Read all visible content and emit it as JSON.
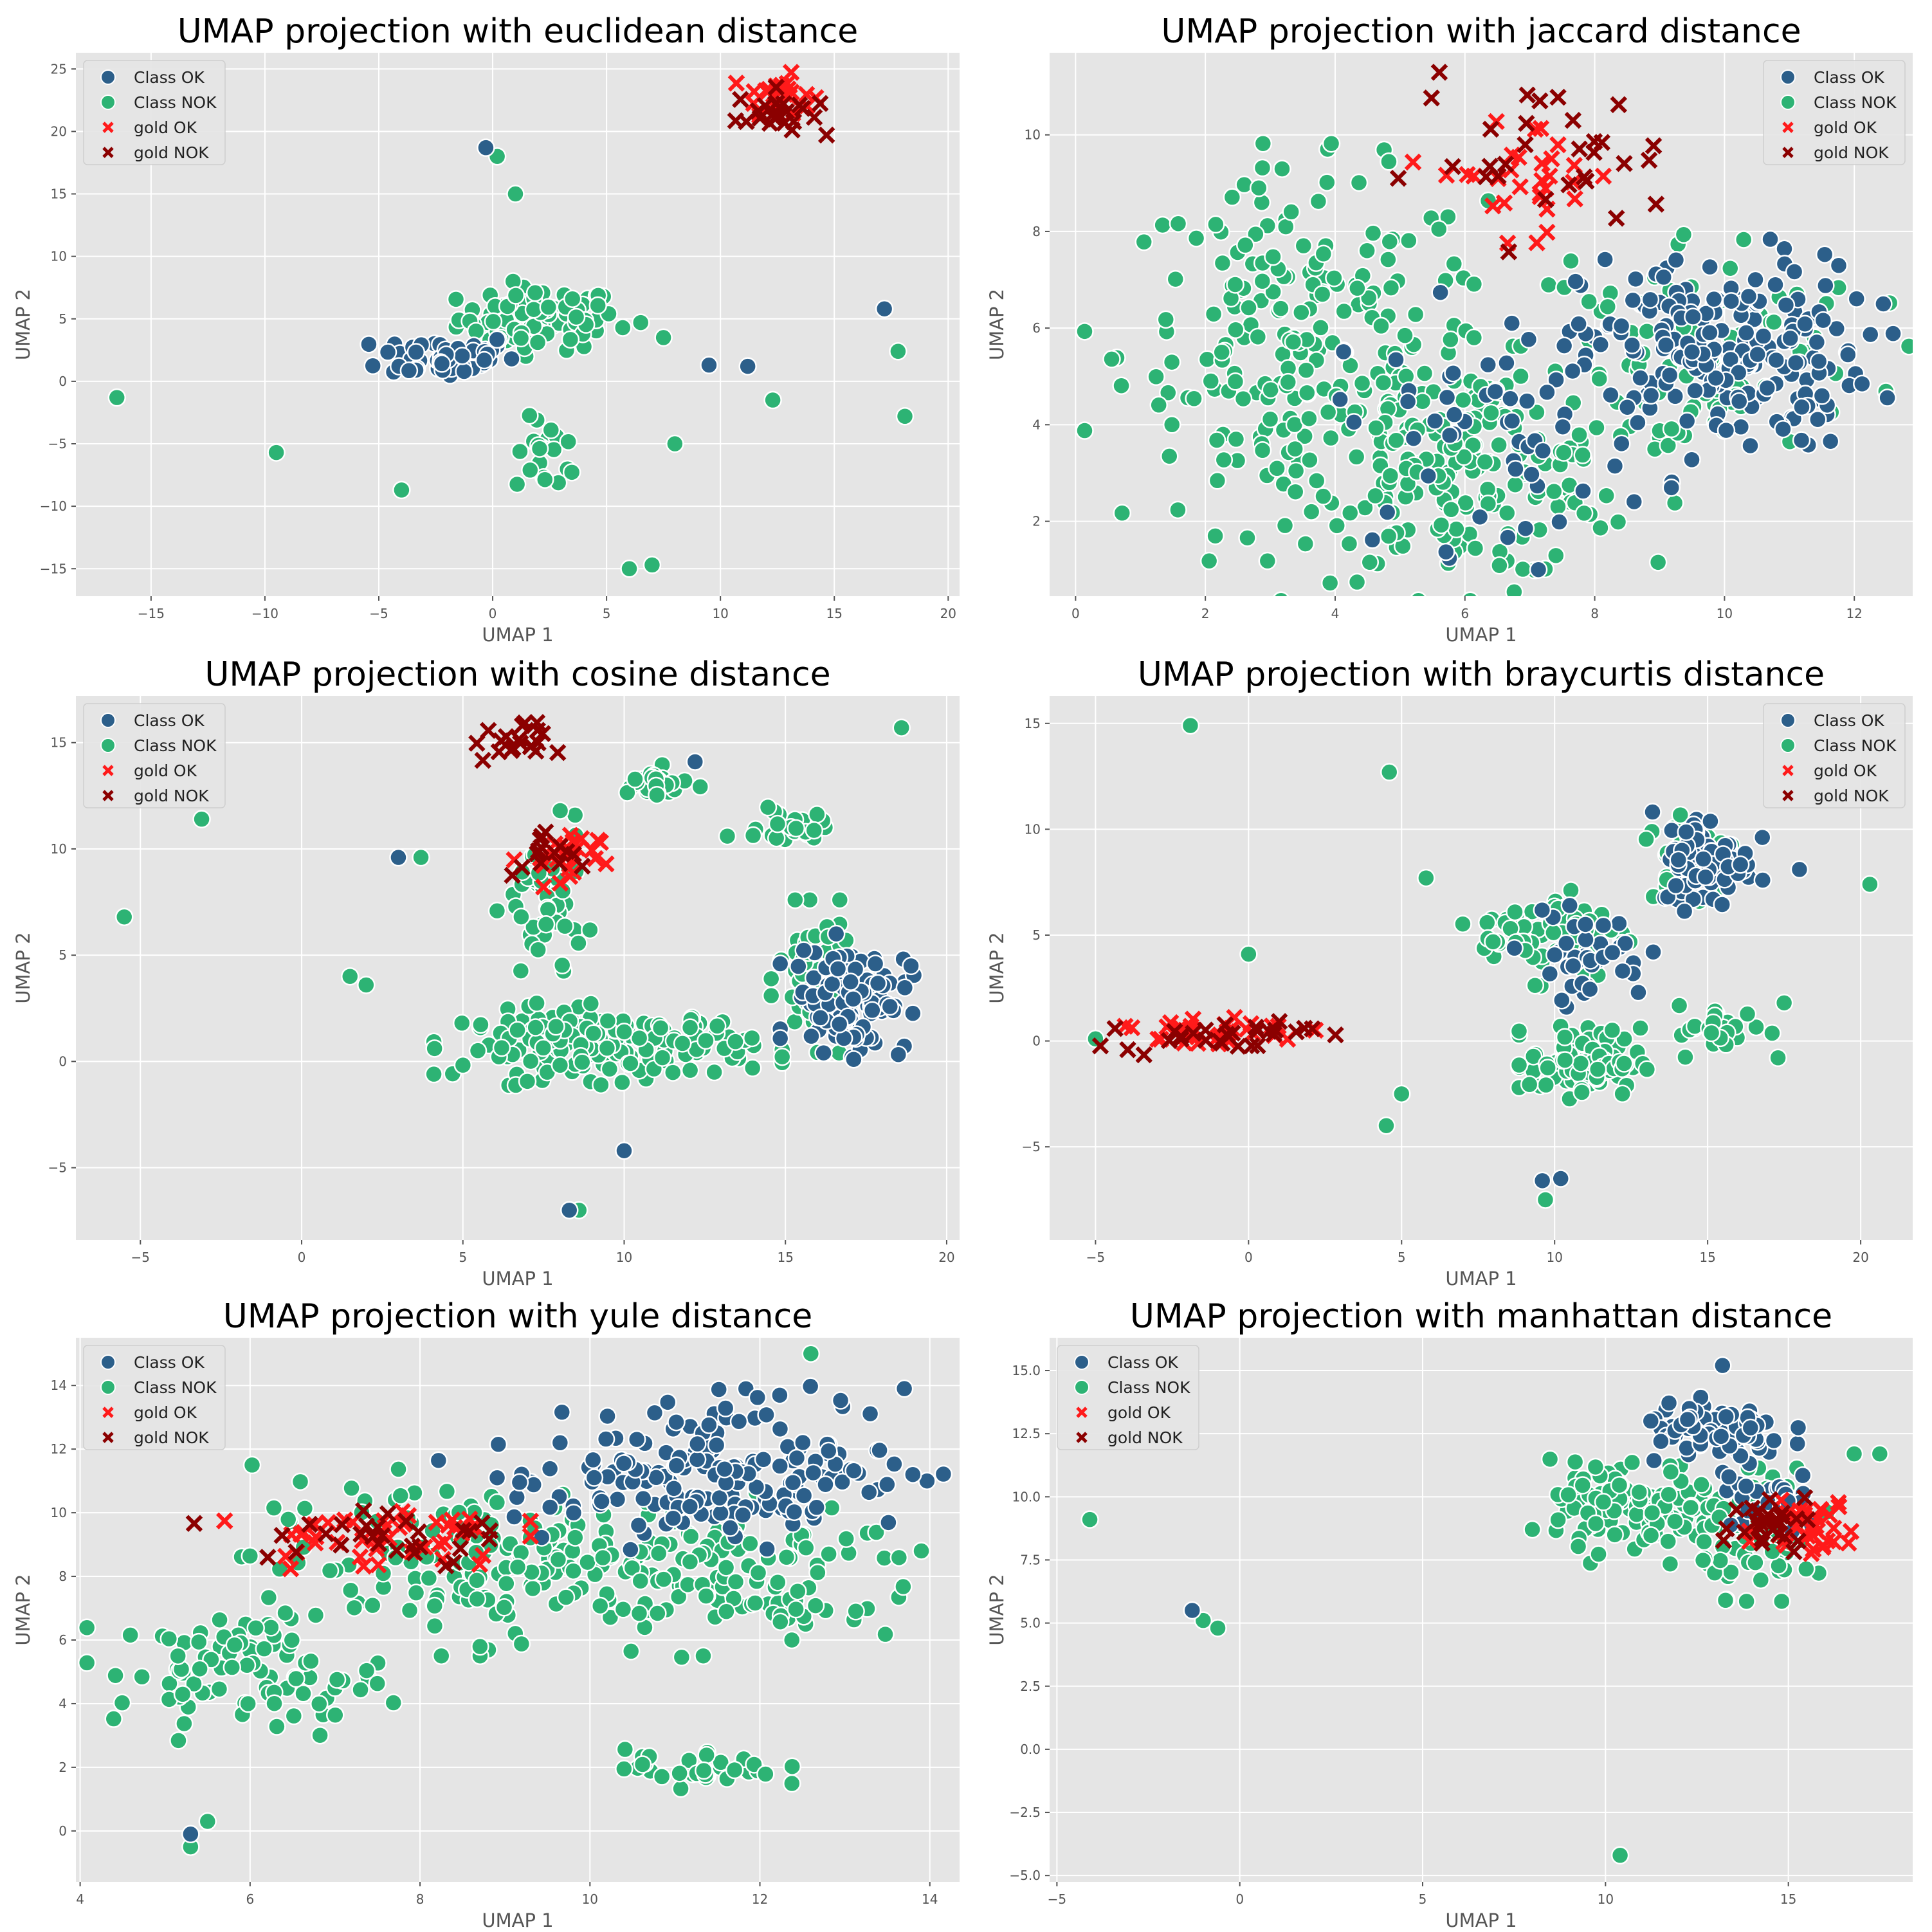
{
  "figure": {
    "legend_entries": [
      {
        "label": "Class OK",
        "color": "#2c5f8a",
        "marker": "circle"
      },
      {
        "label": "Class NOK",
        "color": "#2db374",
        "marker": "circle"
      },
      {
        "label": "gold OK",
        "color": "#ff1a1a",
        "marker": "x"
      },
      {
        "label": "gold NOK",
        "color": "#8b0000",
        "marker": "x"
      }
    ],
    "colors": {
      "background": "#e5e5e5",
      "grid": "#ffffff",
      "class_ok": "#2c5f8a",
      "class_nok": "#2db374",
      "gold_ok": "#ff1a1a",
      "gold_nok": "#8b0000"
    }
  },
  "chart_data": [
    {
      "type": "scatter",
      "title": "UMAP projection with euclidean distance",
      "xlabel": "UMAP 1",
      "ylabel": "UMAP 2",
      "xlim": [
        -18.3,
        20.5
      ],
      "ylim": [
        -17.2,
        26.3
      ],
      "xticks": [
        -15,
        -10,
        -5,
        0,
        5,
        10,
        15,
        20
      ],
      "yticks": [
        -15,
        -10,
        -5,
        0,
        5,
        10,
        15,
        20,
        25
      ],
      "legend_position": "top-left",
      "clusters": [
        {
          "series": "Class OK",
          "cx": -2,
          "cy": 2,
          "rx": 3,
          "ry": 1.8,
          "n": 60
        },
        {
          "series": "Class NOK",
          "cx": 2,
          "cy": 5,
          "rx": 3.5,
          "ry": 2.5,
          "n": 90
        },
        {
          "series": "Class NOK",
          "cx": 2.5,
          "cy": -6,
          "rx": 1.5,
          "ry": 3,
          "n": 20
        },
        {
          "series": "gold OK",
          "cx": 12.5,
          "cy": 23,
          "rx": 1.5,
          "ry": 1.5,
          "n": 25
        },
        {
          "series": "gold NOK",
          "cx": 12.5,
          "cy": 21.5,
          "rx": 1.8,
          "ry": 1.8,
          "n": 25
        }
      ],
      "points": [
        {
          "series": "Class OK",
          "x": -0.3,
          "y": 18.7
        },
        {
          "series": "Class NOK",
          "x": 0.2,
          "y": 18
        },
        {
          "series": "Class NOK",
          "x": 1,
          "y": 15
        },
        {
          "series": "Class NOK",
          "x": -16.5,
          "y": -1.3
        },
        {
          "series": "Class NOK",
          "x": -9.5,
          "y": -5.7
        },
        {
          "series": "Class NOK",
          "x": -4,
          "y": -8.7
        },
        {
          "series": "Class NOK",
          "x": 6,
          "y": -15
        },
        {
          "series": "Class NOK",
          "x": 7,
          "y": -14.7
        },
        {
          "series": "Class NOK",
          "x": 6.5,
          "y": 4.7
        },
        {
          "series": "Class NOK",
          "x": 7.5,
          "y": 3.5
        },
        {
          "series": "Class NOK",
          "x": 8,
          "y": -5
        },
        {
          "series": "Class OK",
          "x": 9.5,
          "y": 1.3
        },
        {
          "series": "Class OK",
          "x": 11.2,
          "y": 1.2
        },
        {
          "series": "Class NOK",
          "x": 12.3,
          "y": -1.5
        },
        {
          "series": "Class OK",
          "x": 17.2,
          "y": 5.8
        },
        {
          "series": "Class NOK",
          "x": 17.8,
          "y": 2.4
        },
        {
          "series": "Class NOK",
          "x": 18.1,
          "y": -2.8
        }
      ]
    },
    {
      "type": "scatter",
      "title": "UMAP projection with jaccard distance",
      "xlabel": "UMAP 1",
      "ylabel": "UMAP 2",
      "xlim": [
        -0.4,
        12.9
      ],
      "ylim": [
        0.45,
        11.7
      ],
      "xticks": [
        0,
        2,
        4,
        6,
        8,
        10,
        12
      ],
      "yticks": [
        2,
        4,
        6,
        8,
        10
      ],
      "legend_position": "top-right",
      "clusters": [
        {
          "series": "Class NOK",
          "cx": 3.5,
          "cy": 5.5,
          "rx": 2.8,
          "ry": 3.6,
          "n": 220
        },
        {
          "series": "Class NOK",
          "cx": 6,
          "cy": 3,
          "rx": 2.5,
          "ry": 2.2,
          "n": 180
        },
        {
          "series": "Class OK",
          "cx": 10,
          "cy": 5.5,
          "rx": 2.2,
          "ry": 2.0,
          "n": 200
        },
        {
          "series": "Class OK",
          "cx": 6.5,
          "cy": 4,
          "rx": 2.5,
          "ry": 2.5,
          "n": 60
        },
        {
          "series": "Class NOK",
          "cx": 9.5,
          "cy": 5.5,
          "rx": 2.8,
          "ry": 2.6,
          "n": 100
        },
        {
          "series": "gold OK",
          "cx": 7.0,
          "cy": 9.2,
          "rx": 1.5,
          "ry": 1.2,
          "n": 30
        },
        {
          "series": "gold NOK",
          "cx": 7.2,
          "cy": 9.5,
          "rx": 2.0,
          "ry": 1.6,
          "n": 30
        }
      ],
      "points": []
    },
    {
      "type": "scatter",
      "title": "UMAP projection with cosine distance",
      "xlabel": "UMAP 1",
      "ylabel": "UMAP 2",
      "xlim": [
        -7.0,
        20.4
      ],
      "ylim": [
        -8.4,
        17.2
      ],
      "xticks": [
        -5,
        0,
        5,
        10,
        15,
        20
      ],
      "yticks": [
        -5,
        0,
        5,
        10,
        15
      ],
      "legend_position": "top-left",
      "clusters": [
        {
          "series": "Class NOK",
          "cx": 9.5,
          "cy": 0.8,
          "rx": 4.5,
          "ry": 1.6,
          "n": 180
        },
        {
          "series": "Class OK",
          "cx": 17,
          "cy": 3,
          "rx": 1.8,
          "ry": 2.5,
          "n": 110
        },
        {
          "series": "Class NOK",
          "cx": 16,
          "cy": 4,
          "rx": 1.2,
          "ry": 3,
          "n": 60
        },
        {
          "series": "Class NOK",
          "cx": 7.5,
          "cy": 7,
          "rx": 1.2,
          "ry": 4,
          "n": 50
        },
        {
          "series": "Class NOK",
          "cx": 11,
          "cy": 13,
          "rx": 1.2,
          "ry": 0.8,
          "n": 25
        },
        {
          "series": "Class NOK",
          "cx": 15.2,
          "cy": 11,
          "rx": 1.0,
          "ry": 0.8,
          "n": 25
        },
        {
          "series": "gold NOK",
          "cx": 6.5,
          "cy": 15,
          "rx": 1.2,
          "ry": 0.9,
          "n": 20
        },
        {
          "series": "gold OK",
          "cx": 8,
          "cy": 9.5,
          "rx": 1.2,
          "ry": 1.5,
          "n": 25
        },
        {
          "series": "gold NOK",
          "cx": 7.5,
          "cy": 9.5,
          "rx": 1.0,
          "ry": 1.5,
          "n": 15
        }
      ],
      "points": [
        {
          "series": "Class NOK",
          "x": -5.5,
          "y": 6.8
        },
        {
          "series": "Class NOK",
          "x": -3.1,
          "y": 11.4
        },
        {
          "series": "Class OK",
          "x": 3.0,
          "y": 9.6
        },
        {
          "series": "Class NOK",
          "x": 3.7,
          "y": 9.6
        },
        {
          "series": "Class NOK",
          "x": 1.5,
          "y": 4.0
        },
        {
          "series": "Class NOK",
          "x": 2,
          "y": 3.6
        },
        {
          "series": "Class OK",
          "x": 12.2,
          "y": 14.1
        },
        {
          "series": "Class NOK",
          "x": 18.6,
          "y": 15.7
        },
        {
          "series": "Class NOK",
          "x": 13.2,
          "y": 10.6
        },
        {
          "series": "Class OK",
          "x": 10.0,
          "y": -4.2
        },
        {
          "series": "Class OK",
          "x": 8.3,
          "y": -7.0
        },
        {
          "series": "Class NOK",
          "x": 8.6,
          "y": -7.0
        }
      ]
    },
    {
      "type": "scatter",
      "title": "UMAP projection with braycurtis distance",
      "xlabel": "UMAP 1",
      "ylabel": "UMAP 2",
      "xlim": [
        -6.5,
        21.7
      ],
      "ylim": [
        -9.4,
        16.3
      ],
      "xticks": [
        -5,
        0,
        5,
        10,
        15,
        20
      ],
      "yticks": [
        -5,
        0,
        5,
        10,
        15
      ],
      "legend_position": "top-right",
      "clusters": [
        {
          "series": "Class NOK",
          "cx": 11,
          "cy": -1,
          "rx": 1.8,
          "ry": 1.6,
          "n": 90
        },
        {
          "series": "Class NOK",
          "cx": 10,
          "cy": 5,
          "rx": 2.5,
          "ry": 2,
          "n": 80
        },
        {
          "series": "Class OK",
          "cx": 15,
          "cy": 8.5,
          "rx": 1.5,
          "ry": 2.2,
          "n": 80
        },
        {
          "series": "Class NOK",
          "cx": 14.5,
          "cy": 9,
          "rx": 1.5,
          "ry": 2,
          "n": 40
        },
        {
          "series": "Class OK",
          "cx": 11,
          "cy": 4,
          "rx": 2,
          "ry": 2,
          "n": 40
        },
        {
          "series": "Class NOK",
          "cx": 15.5,
          "cy": 0.5,
          "rx": 1.5,
          "ry": 1.2,
          "n": 30
        },
        {
          "series": "gold OK",
          "cx": -1.5,
          "cy": 0.5,
          "rx": 3.5,
          "ry": 0.8,
          "n": 35
        },
        {
          "series": "gold NOK",
          "cx": -1,
          "cy": 0.3,
          "rx": 3.2,
          "ry": 0.8,
          "n": 30
        }
      ],
      "points": [
        {
          "series": "Class NOK",
          "x": -1.9,
          "y": 14.9
        },
        {
          "series": "Class NOK",
          "x": 4.6,
          "y": 12.7
        },
        {
          "series": "Class NOK",
          "x": 5.8,
          "y": 7.7
        },
        {
          "series": "Class NOK",
          "x": 0.0,
          "y": 4.1
        },
        {
          "series": "Class NOK",
          "x": -5.0,
          "y": 0.1
        },
        {
          "series": "Class NOK",
          "x": 4.5,
          "y": -4.0
        },
        {
          "series": "Class NOK",
          "x": 5.0,
          "y": -2.5
        },
        {
          "series": "Class OK",
          "x": 9.6,
          "y": -6.6
        },
        {
          "series": "Class OK",
          "x": 10.2,
          "y": -6.5
        },
        {
          "series": "Class NOK",
          "x": 9.7,
          "y": -7.5
        },
        {
          "series": "Class NOK",
          "x": 20.3,
          "y": 7.4
        },
        {
          "series": "Class OK",
          "x": 18.0,
          "y": 8.1
        },
        {
          "series": "Class NOK",
          "x": 17.5,
          "y": 1.8
        }
      ]
    },
    {
      "type": "scatter",
      "title": "UMAP projection with yule distance",
      "xlabel": "UMAP 1",
      "ylabel": "UMAP 2",
      "xlim": [
        3.95,
        14.35
      ],
      "ylim": [
        -1.6,
        15.5
      ],
      "xticks": [
        4,
        6,
        8,
        10,
        12,
        14
      ],
      "yticks": [
        0,
        2,
        4,
        6,
        8,
        10,
        12,
        14
      ],
      "legend_position": "top-left",
      "clusters": [
        {
          "series": "Class NOK",
          "cx": 6,
          "cy": 5,
          "rx": 1.6,
          "ry": 1.8,
          "n": 90
        },
        {
          "series": "Class NOK",
          "cx": 8.5,
          "cy": 8.5,
          "rx": 2.5,
          "ry": 2.5,
          "n": 150
        },
        {
          "series": "Class OK",
          "cx": 12,
          "cy": 11.5,
          "rx": 1.8,
          "ry": 2.2,
          "n": 140
        },
        {
          "series": "Class OK",
          "cx": 10,
          "cy": 11,
          "rx": 1.5,
          "ry": 1.8,
          "n": 50
        },
        {
          "series": "Class NOK",
          "cx": 11.5,
          "cy": 8,
          "rx": 2.5,
          "ry": 2.2,
          "n": 120
        },
        {
          "series": "Class NOK",
          "cx": 11.3,
          "cy": 2.0,
          "rx": 0.9,
          "ry": 0.6,
          "n": 35
        },
        {
          "series": "gold OK",
          "cx": 7.5,
          "cy": 9.3,
          "rx": 1.5,
          "ry": 1.0,
          "n": 45
        },
        {
          "series": "gold NOK",
          "cx": 7.5,
          "cy": 9.3,
          "rx": 1.8,
          "ry": 1.3,
          "n": 30
        }
      ],
      "points": [
        {
          "series": "Class OK",
          "x": 5.3,
          "y": -0.1
        },
        {
          "series": "Class NOK",
          "x": 5.5,
          "y": 0.3
        },
        {
          "series": "Class NOK",
          "x": 5.3,
          "y": -0.5
        },
        {
          "series": "Class NOK",
          "x": 12.6,
          "y": 15.0
        },
        {
          "series": "Class OK",
          "x": 13.7,
          "y": 13.9
        },
        {
          "series": "Class NOK",
          "x": 13.9,
          "y": 8.8
        },
        {
          "series": "Class OK",
          "x": 13.8,
          "y": 11.2
        }
      ]
    },
    {
      "type": "scatter",
      "title": "UMAP projection with manhattan distance",
      "xlabel": "UMAP 1",
      "ylabel": "UMAP 2",
      "xlim": [
        -5.2,
        18.4
      ],
      "ylim": [
        -5.25,
        16.3
      ],
      "xticks": [
        -5,
        0,
        5,
        10,
        15
      ],
      "yticks": [
        -5.0,
        -2.5,
        0.0,
        2.5,
        5.0,
        7.5,
        10.0,
        12.5,
        15.0
      ],
      "tick_labels_y": [
        "−5.0",
        "−2.5",
        "0.0",
        "2.5",
        "5.0",
        "7.5",
        "10.0",
        "12.5",
        "15.0"
      ],
      "legend_position": "top-left",
      "clusters": [
        {
          "series": "Class NOK",
          "cx": 11,
          "cy": 9.5,
          "rx": 2.5,
          "ry": 1.8,
          "n": 120
        },
        {
          "series": "Class OK",
          "cx": 13,
          "cy": 12.5,
          "rx": 2,
          "ry": 1.2,
          "n": 90
        },
        {
          "series": "Class NOK",
          "cx": 14.5,
          "cy": 8.5,
          "rx": 1.8,
          "ry": 2.2,
          "n": 80
        },
        {
          "series": "Class OK",
          "cx": 14.5,
          "cy": 10,
          "rx": 1.5,
          "ry": 1.5,
          "n": 30
        },
        {
          "series": "gold OK",
          "cx": 15.5,
          "cy": 8.8,
          "rx": 1.3,
          "ry": 1.0,
          "n": 35
        },
        {
          "series": "gold NOK",
          "cx": 14.5,
          "cy": 9.2,
          "rx": 1.8,
          "ry": 1.2,
          "n": 30
        }
      ],
      "points": [
        {
          "series": "Class NOK",
          "x": -4.1,
          "y": 9.1
        },
        {
          "series": "Class OK",
          "x": -1.3,
          "y": 5.5
        },
        {
          "series": "Class NOK",
          "x": -1.0,
          "y": 5.1
        },
        {
          "series": "Class NOK",
          "x": -0.6,
          "y": 4.8
        },
        {
          "series": "Class NOK",
          "x": 10.4,
          "y": -4.2
        },
        {
          "series": "Class OK",
          "x": 13.2,
          "y": 15.2
        },
        {
          "series": "Class NOK",
          "x": 17.5,
          "y": 11.7
        },
        {
          "series": "Class NOK",
          "x": 16.8,
          "y": 11.7
        }
      ]
    }
  ]
}
